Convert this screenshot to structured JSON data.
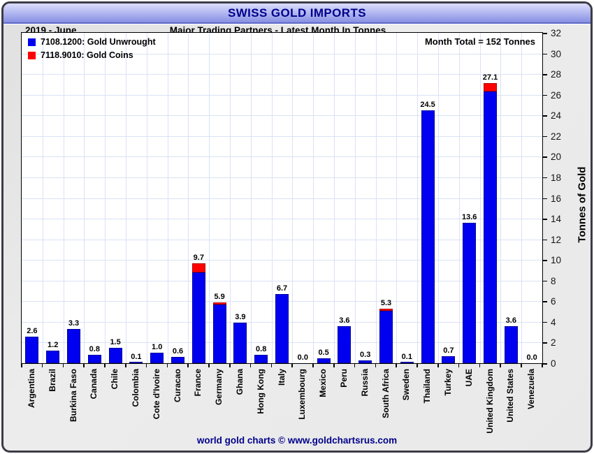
{
  "header": {
    "title": "SWISS GOLD IMPORTS",
    "period": "2019 - June",
    "subtitle": "Major Trading Partners - Latest Month In Tonnes"
  },
  "chart_data": {
    "type": "bar",
    "stacked": true,
    "title": "SWISS GOLD IMPORTS",
    "annotation": "Month Total = 152 Tonnes",
    "xlabel": "",
    "ylabel": "Tonnes of Gold",
    "ylim": [
      0,
      32
    ],
    "ytick_step": 2,
    "grid": true,
    "legend_position": "top-left",
    "categories": [
      "Argentina",
      "Brazil",
      "Burkina Faso",
      "Canada",
      "Chile",
      "Colombia",
      "Cote d'Ivoire",
      "Curacao",
      "France",
      "Germany",
      "Ghana",
      "Hong Kong",
      "Italy",
      "Luxembourg",
      "Mexico",
      "Peru",
      "Russia",
      "South Africa",
      "Sweden",
      "Thailand",
      "Turkey",
      "UAE",
      "United Kingdom",
      "United States",
      "Venezuela"
    ],
    "series": [
      {
        "name": "7108.1200: Gold Unwrought",
        "color": "#0000f0",
        "edge_color": "#0000a0",
        "values": [
          2.6,
          1.2,
          3.3,
          0.8,
          1.5,
          0.1,
          1.0,
          0.6,
          8.8,
          5.7,
          3.9,
          0.8,
          6.7,
          0.0,
          0.5,
          3.6,
          0.3,
          5.1,
          0.1,
          24.5,
          0.7,
          13.6,
          26.3,
          3.6,
          0.0
        ]
      },
      {
        "name": "7118.9010: Gold Coins",
        "color": "#ff0000",
        "edge_color": "#b00000",
        "values": [
          0,
          0,
          0,
          0,
          0,
          0,
          0,
          0,
          0.9,
          0.2,
          0,
          0,
          0,
          0,
          0,
          0,
          0,
          0.2,
          0,
          0,
          0,
          0,
          0.8,
          0,
          0
        ]
      }
    ],
    "total_labels": [
      "2.6",
      "1.2",
      "3.3",
      "0.8",
      "1.5",
      "0.1",
      "1.0",
      "0.6",
      "9.7",
      "5.9",
      "3.9",
      "0.8",
      "6.7",
      "0.0",
      "0.5",
      "3.6",
      "0.3",
      "5.3",
      "0.1",
      "24.5",
      "0.7",
      "13.6",
      "27.1",
      "3.6",
      "0.0"
    ]
  },
  "colors": {
    "title_navy": "#00008b",
    "grid_blue": "#d9e2f4",
    "bar_blue": "#0000f0",
    "bar_red": "#ff0000"
  },
  "footer": {
    "text": "world gold charts © www.goldchartsrus.com"
  }
}
